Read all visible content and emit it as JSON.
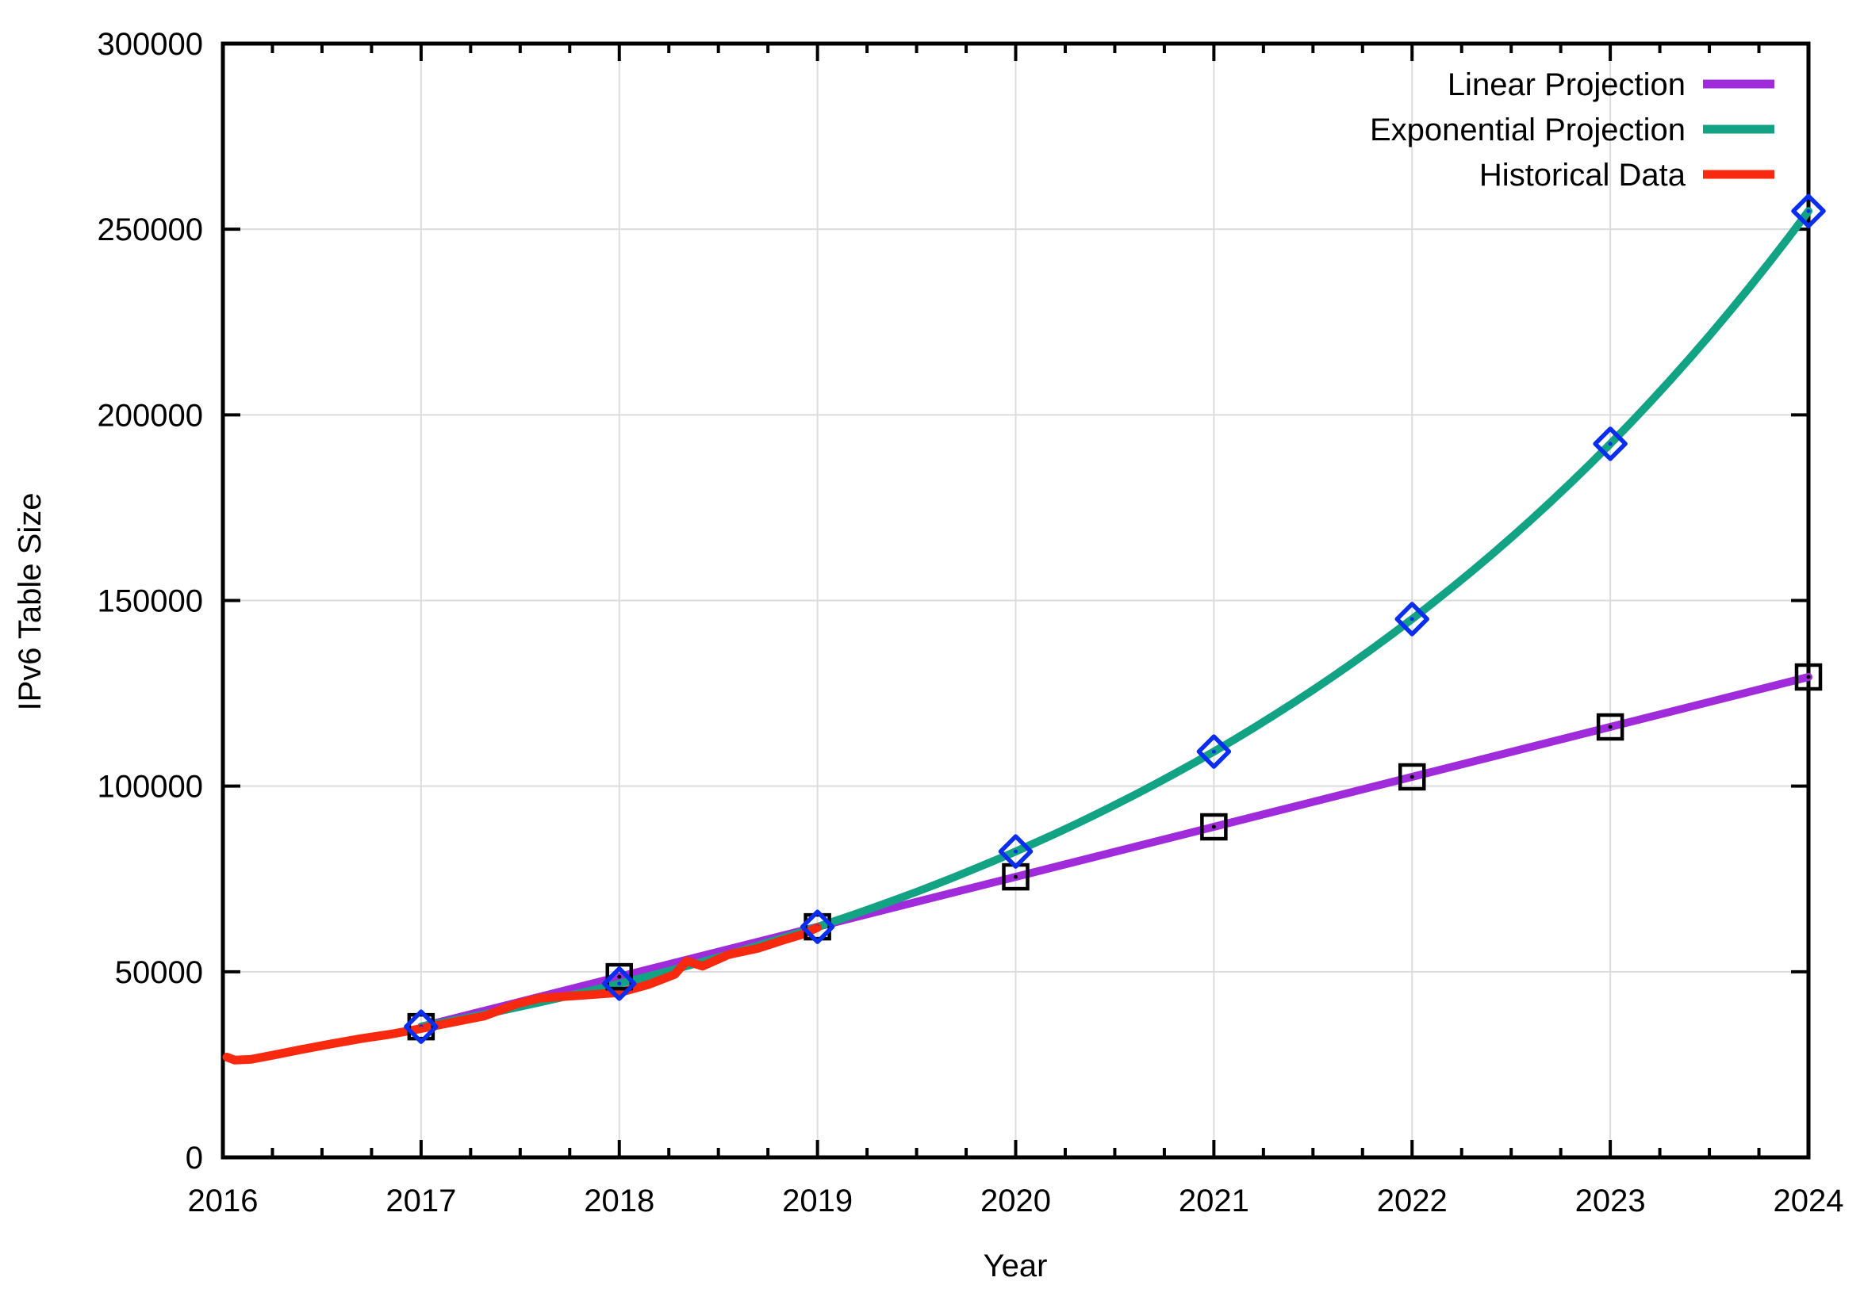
{
  "chart_data": {
    "type": "line",
    "title": "",
    "xlabel": "Year",
    "ylabel": "IPv6 Table Size",
    "xlim": [
      2016,
      2024
    ],
    "ylim": [
      0,
      300000
    ],
    "x_major_ticks": [
      2016,
      2017,
      2018,
      2019,
      2020,
      2021,
      2022,
      2023,
      2024
    ],
    "x_minor_tick_interval": 0.25,
    "y_major_ticks": [
      0,
      50000,
      100000,
      150000,
      200000,
      250000,
      300000
    ],
    "grid": true,
    "legend_position": "top-right-inside",
    "colors": {
      "linear": "#9F2BDB",
      "exponential": "#12A384",
      "historical": "#F9290F",
      "diamond_marker": "#0A2EF0",
      "square_marker": "#000000",
      "gridline": "#DCDCDC",
      "axis": "#000000",
      "background": "#FFFFFF"
    },
    "series": [
      {
        "name": "Linear Projection",
        "key": "linear",
        "line_color": "#9F2BDB",
        "marker": "square",
        "marker_color": "#000000",
        "interpolation": "linear",
        "x": [
          2017,
          2018,
          2019,
          2020,
          2021,
          2022,
          2023,
          2024
        ],
        "values": [
          35200,
          48660,
          62110,
          75570,
          89030,
          102490,
          115940,
          129400
        ]
      },
      {
        "name": "Exponential Projection",
        "key": "exponential",
        "line_color": "#12A384",
        "marker": "diamond",
        "marker_color": "#0A2EF0",
        "interpolation": "exponential",
        "x": [
          2017,
          2018,
          2019,
          2020,
          2021,
          2022,
          2023,
          2024
        ],
        "values": [
          35200,
          46800,
          62100,
          82400,
          109300,
          145000,
          192200,
          254900
        ]
      },
      {
        "name": "Historical Data",
        "key": "historical",
        "line_color": "#F9290F",
        "marker": "none",
        "interpolation": "linear",
        "points": [
          [
            2016.02,
            27000
          ],
          [
            2016.06,
            26200
          ],
          [
            2016.14,
            26400
          ],
          [
            2016.25,
            27500
          ],
          [
            2016.4,
            29100
          ],
          [
            2016.55,
            30600
          ],
          [
            2016.7,
            32000
          ],
          [
            2016.85,
            33200
          ],
          [
            2017.0,
            34700
          ],
          [
            2017.15,
            36300
          ],
          [
            2017.32,
            38100
          ],
          [
            2017.48,
            41300
          ],
          [
            2017.6,
            42900
          ],
          [
            2017.8,
            43600
          ],
          [
            2018.0,
            44400
          ],
          [
            2018.15,
            46600
          ],
          [
            2018.28,
            49300
          ],
          [
            2018.34,
            52900
          ],
          [
            2018.42,
            51500
          ],
          [
            2018.55,
            54600
          ],
          [
            2018.7,
            56300
          ],
          [
            2018.82,
            58400
          ],
          [
            2018.92,
            60000
          ],
          [
            2019.0,
            61900
          ]
        ]
      }
    ],
    "legend_items": [
      {
        "label": "Linear Projection",
        "color": "#9F2BDB"
      },
      {
        "label": "Exponential Projection",
        "color": "#12A384"
      },
      {
        "label": "Historical Data",
        "color": "#F9290F"
      }
    ]
  }
}
